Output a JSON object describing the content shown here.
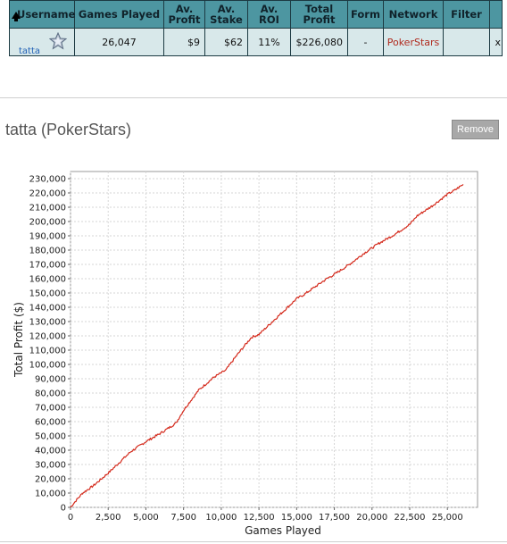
{
  "table": {
    "headers": {
      "username": "Username",
      "games_played": "Games Played",
      "av_profit": [
        "Av.",
        "Profit"
      ],
      "av_stake": [
        "Av.",
        "Stake"
      ],
      "av_roi": "Av. ROI",
      "total_profit": [
        "Total",
        "Profit"
      ],
      "form": "Form",
      "network": "Network",
      "filter": "Filter"
    },
    "row": {
      "username": "tatta",
      "games_played": "26,047",
      "av_profit": "$9",
      "av_stake": "$62",
      "av_roi": "11%",
      "total_profit": "$226,080",
      "form": "-",
      "network": "PokerStars",
      "filter": "",
      "remove": "x"
    }
  },
  "panel": {
    "title": "tatta (PokerStars)",
    "remove_label": "Remove"
  },
  "colors": {
    "header_bg": "#4d96a1",
    "row_bg": "#d8e8ea",
    "line": "#d42a1c",
    "link": "#1f5fb5",
    "network": "#b02a1e"
  },
  "chart_data": {
    "type": "line",
    "xlabel": "Games Played",
    "ylabel": "Total Profit ($)",
    "xlim": [
      0,
      27000
    ],
    "ylim": [
      0,
      235000
    ],
    "x_ticks": [
      0,
      2500,
      5000,
      7500,
      10000,
      12500,
      15000,
      17500,
      20000,
      22500,
      25000
    ],
    "x_tick_labels": [
      "0",
      "2,500",
      "5,000",
      "7,500",
      "10,000",
      "12,500",
      "15,000",
      "17,500",
      "20,000",
      "22,500",
      "25,000"
    ],
    "y_ticks": [
      0,
      10000,
      20000,
      30000,
      40000,
      50000,
      60000,
      70000,
      80000,
      90000,
      100000,
      110000,
      120000,
      130000,
      140000,
      150000,
      160000,
      170000,
      180000,
      190000,
      200000,
      210000,
      220000,
      230000
    ],
    "y_tick_labels": [
      "0",
      "10,000",
      "20,000",
      "30,000",
      "40,000",
      "50,000",
      "60,000",
      "70,000",
      "80,000",
      "90,000",
      "100,000",
      "110,000",
      "120,000",
      "130,000",
      "140,000",
      "150,000",
      "160,000",
      "170,000",
      "180,000",
      "190,000",
      "200,000",
      "210,000",
      "220,000",
      "230,000"
    ],
    "grid": true,
    "series": [
      {
        "color": "#d42a1c",
        "x": [
          0,
          300,
          800,
          1500,
          2500,
          3500,
          4000,
          5000,
          6000,
          7000,
          7500,
          8500,
          9500,
          10300,
          11000,
          12000,
          12500,
          13000,
          14000,
          15000,
          15500,
          17000,
          17500,
          18500,
          19500,
          20500,
          21500,
          22500,
          23000,
          24000,
          25000,
          25500,
          26047
        ],
        "y": [
          0,
          4000,
          10000,
          15000,
          24000,
          34000,
          39000,
          46000,
          52000,
          59000,
          68000,
          82000,
          91000,
          96000,
          106000,
          119000,
          121000,
          126000,
          136000,
          146000,
          149000,
          160000,
          163000,
          170000,
          178000,
          185000,
          191000,
          198000,
          204000,
          211000,
          219000,
          222000,
          226000
        ]
      }
    ]
  }
}
